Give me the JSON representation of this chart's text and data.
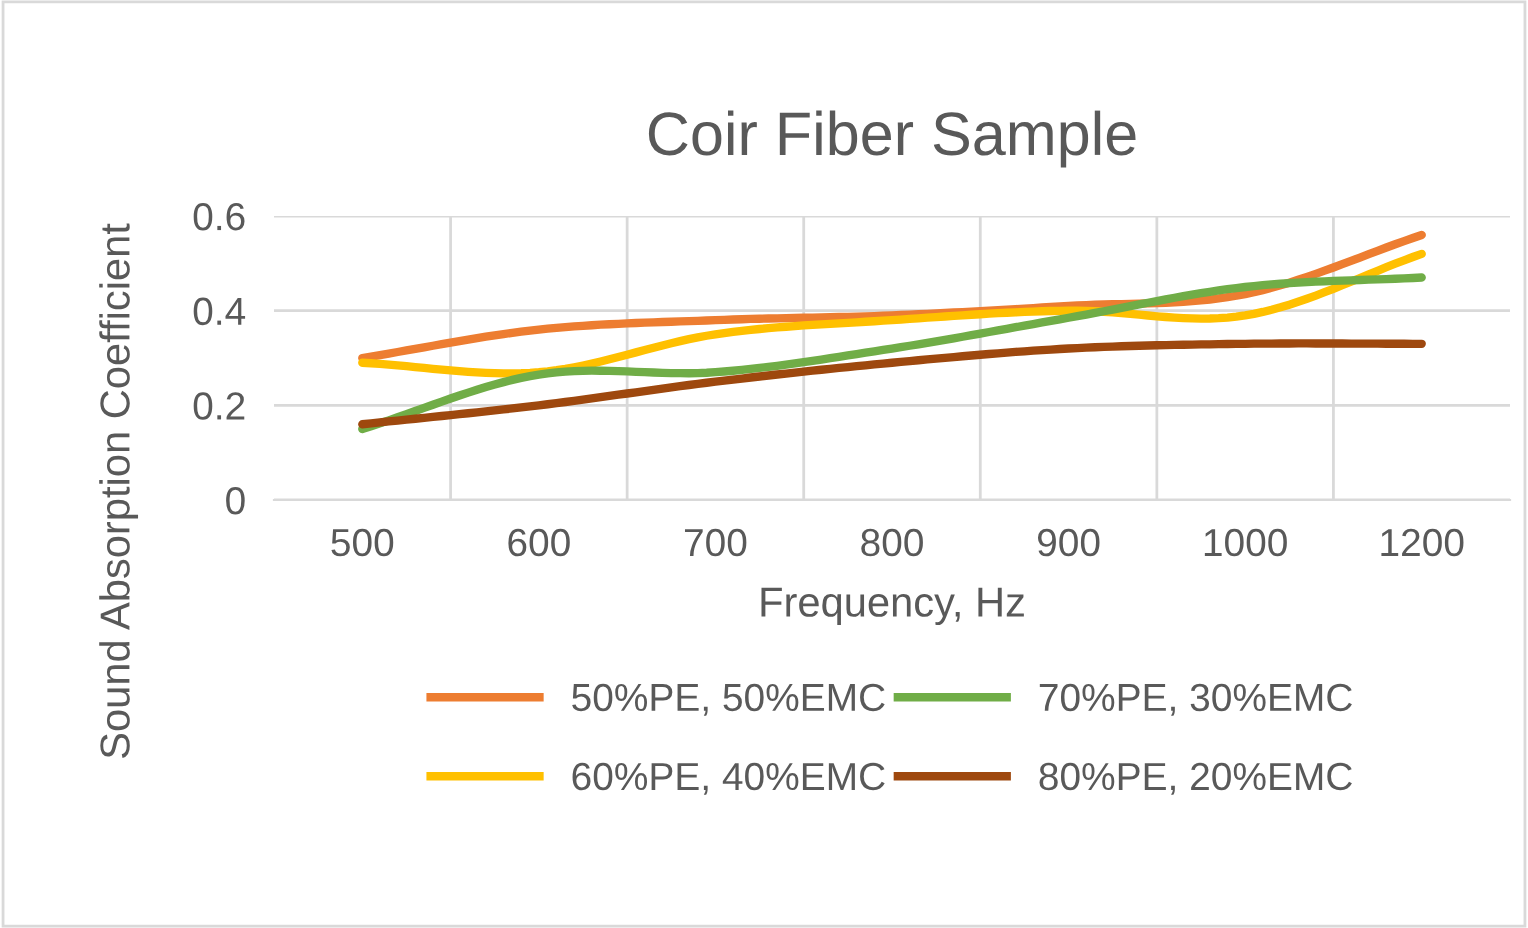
{
  "chart_data": {
    "type": "line",
    "title": "Coir Fiber Sample",
    "xlabel": "Frequency, Hz",
    "ylabel": "Sound Absorption Coefficient",
    "categories": [
      "500",
      "600",
      "700",
      "800",
      "900",
      "1000",
      "1200"
    ],
    "series": [
      {
        "name": "50%PE, 50%EMC",
        "color": "#ed7d31",
        "values": [
          0.3,
          0.36,
          0.38,
          0.39,
          0.41,
          0.435,
          0.56
        ]
      },
      {
        "name": "60%PE, 40%EMC",
        "color": "#ffc000",
        "values": [
          0.29,
          0.27,
          0.35,
          0.38,
          0.4,
          0.39,
          0.52
        ]
      },
      {
        "name": "70%PE, 30%EMC",
        "color": "#70ad47",
        "values": [
          0.15,
          0.265,
          0.27,
          0.32,
          0.385,
          0.45,
          0.47
        ]
      },
      {
        "name": "80%PE, 20%EMC",
        "color": "#9e480e",
        "values": [
          0.16,
          0.2,
          0.25,
          0.29,
          0.32,
          0.33,
          0.33
        ]
      }
    ],
    "ylim": [
      0,
      0.6
    ],
    "yticks": [
      0,
      {
        "value": 0.2,
        "label": "0.2"
      },
      {
        "value": 0.4,
        "label": "0.4"
      },
      {
        "value": 0.6,
        "label": "0.6"
      }
    ],
    "grid": true,
    "legend": "bottom",
    "marker": "none",
    "line_style": "solid"
  }
}
